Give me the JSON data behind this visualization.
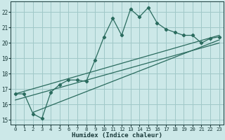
{
  "background_color": "#cce8e8",
  "grid_color": "#a0c8c8",
  "line_color": "#2a6b5e",
  "xlabel": "Humidex (Indice chaleur)",
  "xlim": [
    -0.5,
    23.5
  ],
  "ylim": [
    14.7,
    22.7
  ],
  "yticks": [
    15,
    16,
    17,
    18,
    19,
    20,
    21,
    22
  ],
  "xticks": [
    0,
    1,
    2,
    3,
    4,
    5,
    6,
    7,
    8,
    9,
    10,
    11,
    12,
    13,
    14,
    15,
    16,
    17,
    18,
    19,
    20,
    21,
    22,
    23
  ],
  "line1_x": [
    0,
    1,
    2,
    3,
    4,
    5,
    6,
    7,
    8,
    9,
    10,
    11,
    12,
    13,
    14,
    15,
    16,
    17,
    18,
    19,
    20,
    21,
    22,
    23
  ],
  "line1_y": [
    16.7,
    16.7,
    15.4,
    15.1,
    16.8,
    17.3,
    17.6,
    17.6,
    17.5,
    18.9,
    20.4,
    21.6,
    20.5,
    22.2,
    21.7,
    22.3,
    21.3,
    20.9,
    20.7,
    20.5,
    20.5,
    20.0,
    20.3,
    20.4
  ],
  "line2_x": [
    0,
    23
  ],
  "line2_y": [
    16.7,
    20.5
  ],
  "line3_x": [
    0,
    23
  ],
  "line3_y": [
    16.3,
    20.0
  ],
  "line4_x": [
    2,
    23
  ],
  "line4_y": [
    15.5,
    20.2
  ]
}
